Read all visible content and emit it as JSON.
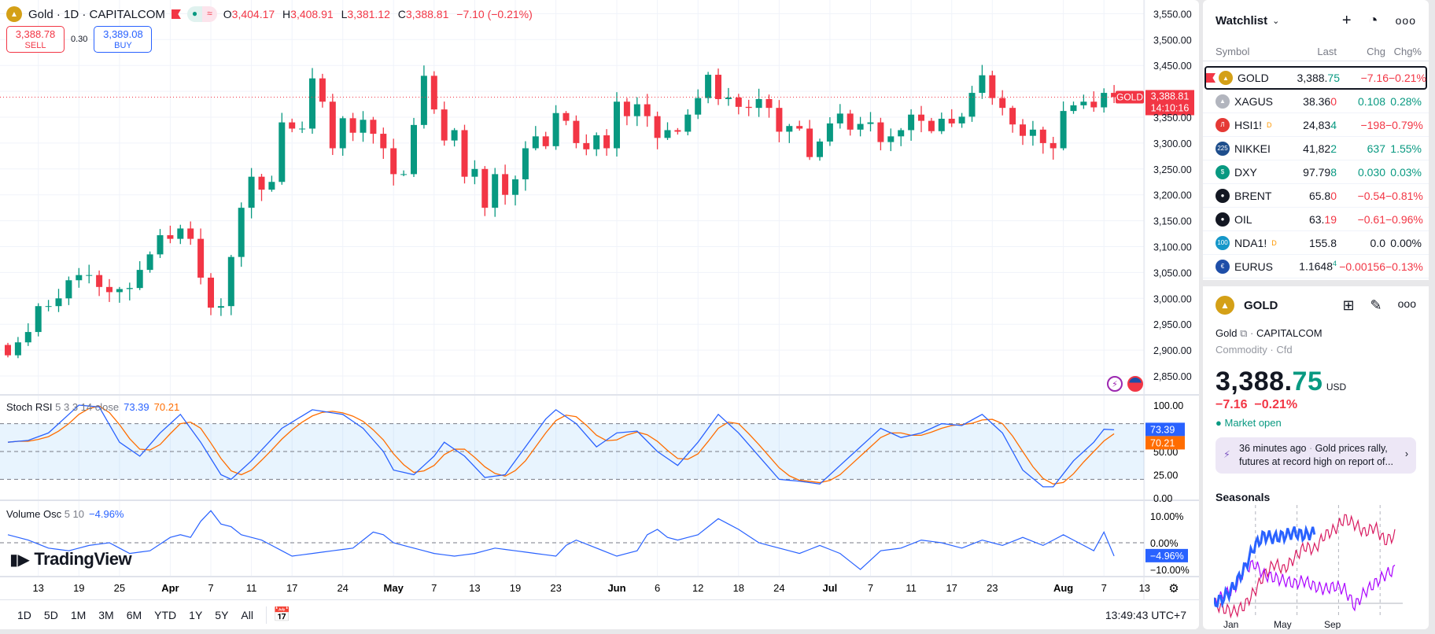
{
  "header": {
    "symbol_title": "Gold · 1D · CAPITALCOM",
    "o_label": "O",
    "o": "3,404.17",
    "h_label": "H",
    "h": "3,408.91",
    "l_label": "L",
    "l": "3,381.12",
    "c_label": "C",
    "c": "3,388.81",
    "change": "−7.10 (−0.21%)"
  },
  "trade": {
    "sell_price": "3,388.78",
    "sell_label": "SELL",
    "spread": "0.30",
    "buy_price": "3,389.08",
    "buy_label": "BUY"
  },
  "price_axis": {
    "ticks": [
      "3,550.00",
      "3,500.00",
      "3,450.00",
      "3,400.00",
      "3,350.00",
      "3,300.00",
      "3,250.00",
      "3,200.00",
      "3,150.00",
      "3,100.00",
      "3,050.00",
      "3,000.00",
      "2,950.00",
      "2,900.00",
      "2,850.00"
    ],
    "tick_values": [
      3550,
      3500,
      3450,
      3400,
      3350,
      3300,
      3250,
      3200,
      3150,
      3100,
      3050,
      3000,
      2950,
      2900,
      2850
    ],
    "last_label": "GOLD",
    "last_price": "3,388.81",
    "countdown": "14:10:16",
    "last_value": 3388.81
  },
  "chart_data": {
    "type": "candlestick",
    "first_open": 2910,
    "closes": [
      2890,
      2915,
      2935,
      2985,
      2985,
      3000,
      3035,
      3045,
      3045,
      3022,
      3012,
      3018,
      3020,
      3055,
      3085,
      3122,
      3115,
      3135,
      3115,
      3040,
      2982,
      2985,
      3080,
      3175,
      3235,
      3210,
      3225,
      3340,
      3328,
      3328,
      3425,
      3380,
      3290,
      3348,
      3320,
      3345,
      3318,
      3290,
      3240,
      3240,
      3335,
      3430,
      3365,
      3305,
      3325,
      3235,
      3250,
      3175,
      3240,
      3200,
      3230,
      3290,
      3313,
      3294,
      3358,
      3343,
      3300,
      3288,
      3315,
      3290,
      3380,
      3352,
      3375,
      3352,
      3310,
      3325,
      3322,
      3355,
      3387,
      3432,
      3385,
      3388,
      3370,
      3368,
      3385,
      3368,
      3322,
      3333,
      3328,
      3273,
      3303,
      3338,
      3357,
      3326,
      3337,
      3340,
      3302,
      3313,
      3325,
      3355,
      3343,
      3323,
      3347,
      3338,
      3351,
      3397,
      3431,
      3387,
      3368,
      3336,
      3314,
      3326,
      3300,
      3290,
      3362,
      3373,
      3380,
      3369,
      3397,
      3388.81
    ],
    "colors": {
      "up": "#089981",
      "down": "#f23645"
    }
  },
  "time_axis": [
    {
      "l": "13",
      "i": 3
    },
    {
      "l": "19",
      "i": 7
    },
    {
      "l": "25",
      "i": 11
    },
    {
      "l": "Apr",
      "i": 16,
      "m": true
    },
    {
      "l": "7",
      "i": 20
    },
    {
      "l": "11",
      "i": 24
    },
    {
      "l": "17",
      "i": 28
    },
    {
      "l": "24",
      "i": 33
    },
    {
      "l": "May",
      "i": 38,
      "m": true
    },
    {
      "l": "7",
      "i": 42
    },
    {
      "l": "13",
      "i": 46
    },
    {
      "l": "19",
      "i": 50
    },
    {
      "l": "23",
      "i": 54
    },
    {
      "l": "Jun",
      "i": 60,
      "m": true
    },
    {
      "l": "6",
      "i": 64
    },
    {
      "l": "12",
      "i": 68
    },
    {
      "l": "18",
      "i": 72
    },
    {
      "l": "24",
      "i": 76
    },
    {
      "l": "Jul",
      "i": 81,
      "m": true
    },
    {
      "l": "7",
      "i": 85
    },
    {
      "l": "11",
      "i": 89
    },
    {
      "l": "17",
      "i": 93
    },
    {
      "l": "23",
      "i": 97
    },
    {
      "l": "Aug",
      "i": 104,
      "m": true
    },
    {
      "l": "7",
      "i": 108
    },
    {
      "l": "13",
      "i": 112
    }
  ],
  "stoch": {
    "name": "Stoch RSI",
    "params": "5 3 3 14 close",
    "k": "73.39",
    "d": "70.21",
    "ticks": [
      "100.00",
      "50.00",
      "25.00",
      "0.00"
    ],
    "tick_values": [
      100,
      50,
      25,
      0
    ],
    "k_keypoints": [
      [
        0,
        60
      ],
      [
        2,
        62
      ],
      [
        4,
        70
      ],
      [
        7,
        100
      ],
      [
        9,
        98
      ],
      [
        11,
        60
      ],
      [
        13,
        45
      ],
      [
        15,
        70
      ],
      [
        17,
        90
      ],
      [
        19,
        60
      ],
      [
        21,
        25
      ],
      [
        22,
        20
      ],
      [
        24,
        40
      ],
      [
        27,
        75
      ],
      [
        30,
        95
      ],
      [
        33,
        90
      ],
      [
        35,
        75
      ],
      [
        37,
        50
      ],
      [
        38,
        30
      ],
      [
        40,
        25
      ],
      [
        42,
        45
      ],
      [
        43,
        60
      ],
      [
        45,
        45
      ],
      [
        47,
        22
      ],
      [
        49,
        25
      ],
      [
        51,
        55
      ],
      [
        53,
        85
      ],
      [
        54,
        95
      ],
      [
        56,
        80
      ],
      [
        58,
        55
      ],
      [
        60,
        70
      ],
      [
        62,
        72
      ],
      [
        64,
        50
      ],
      [
        66,
        35
      ],
      [
        68,
        60
      ],
      [
        70,
        90
      ],
      [
        72,
        70
      ],
      [
        74,
        45
      ],
      [
        76,
        20
      ],
      [
        78,
        18
      ],
      [
        80,
        15
      ],
      [
        82,
        35
      ],
      [
        84,
        55
      ],
      [
        86,
        75
      ],
      [
        88,
        65
      ],
      [
        90,
        70
      ],
      [
        92,
        80
      ],
      [
        94,
        78
      ],
      [
        96,
        90
      ],
      [
        98,
        70
      ],
      [
        100,
        30
      ],
      [
        102,
        12
      ],
      [
        103,
        12
      ],
      [
        105,
        40
      ],
      [
        107,
        60
      ],
      [
        108,
        74
      ],
      [
        109,
        73.39
      ]
    ]
  },
  "volosc": {
    "name": "Volume Osc",
    "params": "5 10",
    "value": "−4.96%",
    "ticks": [
      "10.00%",
      "0.00%",
      "−10.00%"
    ],
    "tick_values": [
      10,
      0,
      -10
    ],
    "keypoints": [
      [
        0,
        3
      ],
      [
        2,
        1
      ],
      [
        4,
        -2
      ],
      [
        6,
        -3
      ],
      [
        8,
        -1
      ],
      [
        10,
        0
      ],
      [
        12,
        -4
      ],
      [
        14,
        -3
      ],
      [
        16,
        2
      ],
      [
        17,
        3
      ],
      [
        18,
        2
      ],
      [
        19,
        8
      ],
      [
        20,
        12
      ],
      [
        21,
        7
      ],
      [
        22,
        6
      ],
      [
        23,
        3
      ],
      [
        25,
        1
      ],
      [
        27,
        -3
      ],
      [
        28,
        -5
      ],
      [
        30,
        -4
      ],
      [
        32,
        -3
      ],
      [
        34,
        -2
      ],
      [
        36,
        4
      ],
      [
        37,
        3
      ],
      [
        38,
        0
      ],
      [
        40,
        -2
      ],
      [
        42,
        -4
      ],
      [
        44,
        -5
      ],
      [
        46,
        -4
      ],
      [
        48,
        -2
      ],
      [
        50,
        -3
      ],
      [
        52,
        -4
      ],
      [
        54,
        -5
      ],
      [
        55,
        -1
      ],
      [
        56,
        1
      ],
      [
        58,
        -2
      ],
      [
        60,
        -5
      ],
      [
        62,
        -3
      ],
      [
        63,
        3
      ],
      [
        64,
        5
      ],
      [
        65,
        2
      ],
      [
        66,
        1
      ],
      [
        68,
        3
      ],
      [
        70,
        9
      ],
      [
        72,
        5
      ],
      [
        74,
        0
      ],
      [
        76,
        -2
      ],
      [
        78,
        -4
      ],
      [
        80,
        -1
      ],
      [
        82,
        -4
      ],
      [
        84,
        -10
      ],
      [
        86,
        -3
      ],
      [
        88,
        -2
      ],
      [
        90,
        1
      ],
      [
        92,
        0
      ],
      [
        94,
        -2
      ],
      [
        96,
        1
      ],
      [
        98,
        -1
      ],
      [
        100,
        2
      ],
      [
        102,
        -1
      ],
      [
        104,
        3
      ],
      [
        106,
        -1
      ],
      [
        107,
        -3
      ],
      [
        108,
        4
      ],
      [
        109,
        -4.96
      ]
    ]
  },
  "logo": "TradingView",
  "toolbar": {
    "ranges": [
      "1D",
      "5D",
      "1M",
      "3M",
      "6M",
      "YTD",
      "1Y",
      "5Y",
      "All"
    ],
    "clock": "13:49:43 UTC+7"
  },
  "watchlist": {
    "title": "Watchlist",
    "cols": [
      "Symbol",
      "Last",
      "Chg",
      "Chg%"
    ],
    "rows": [
      {
        "sym": "GOLD",
        "last_a": "3,388.",
        "last_b": "75",
        "last_dir": "up",
        "chg": "−7.16",
        "pct": "−0.21%",
        "dir": "dn",
        "icon_color": "#d4a017",
        "icon": "▲"
      },
      {
        "sym": "XAGUS",
        "last_a": "38.36",
        "last_b": "0",
        "last_dir": "dn",
        "chg": "0.108",
        "pct": "0.28%",
        "dir": "up",
        "icon_color": "#b2b5be",
        "icon": "▲"
      },
      {
        "sym": "HSI1!",
        "sup": "D",
        "last_a": "24,83",
        "last_b": "4",
        "last_dir": "up",
        "chg": "−198",
        "pct": "−0.79%",
        "dir": "dn",
        "icon_color": "#e53935",
        "icon": "Л"
      },
      {
        "sym": "NIKKEI",
        "last_a": "41,82",
        "last_b": "2",
        "last_dir": "up",
        "chg": "637",
        "pct": "1.55%",
        "dir": "up",
        "icon_color": "#1e4e8c",
        "icon": "225"
      },
      {
        "sym": "DXY",
        "last_a": "97.79",
        "last_b": "8",
        "last_dir": "up",
        "chg": "0.030",
        "pct": "0.03%",
        "dir": "up",
        "icon_color": "#089981",
        "icon": "$"
      },
      {
        "sym": "BRENT",
        "last_a": "65.8",
        "last_b": "0",
        "last_dir": "dn",
        "chg": "−0.54",
        "pct": "−0.81%",
        "dir": "dn",
        "icon_color": "#131722",
        "icon": "●"
      },
      {
        "sym": "OIL",
        "last_a": "63.",
        "last_b": "19",
        "last_dir": "dn",
        "chg": "−0.61",
        "pct": "−0.96%",
        "dir": "dn",
        "icon_color": "#131722",
        "icon": "●"
      },
      {
        "sym": "NDA1!",
        "sup": "D",
        "last_a": "155.8",
        "last_b": "",
        "last_dir": "",
        "chg": "0.0",
        "pct": "0.00%",
        "dir": "",
        "icon_color": "#1597c9",
        "icon": "100"
      },
      {
        "sym": "EURUS",
        "last_a": "1.1648",
        "last_b": "4",
        "last_dir": "up",
        "last_sup": true,
        "chg": "−0.00156",
        "pct": "−0.13%",
        "dir": "dn",
        "icon_color": "#1e4ea8",
        "icon": "€"
      }
    ]
  },
  "detail": {
    "symbol": "GOLD",
    "name": "Gold",
    "exchange": "CAPITALCOM",
    "type": "Commodity",
    "subtype": "Cfd",
    "price_a": "3,388.",
    "price_b": "75",
    "currency": "USD",
    "chg": "−7.16",
    "pct": "−0.21%",
    "status": "Market open",
    "news_time": "36 minutes ago",
    "news_text": "Gold prices rally, futures at record high on report of...",
    "seasonals_title": "Seasonals",
    "seasonal_x": [
      "Jan",
      "May",
      "Sep"
    ],
    "seasonals": [
      {
        "color": "#d81b60",
        "points": [
          0,
          -2,
          -3,
          -1,
          4,
          10,
          14,
          12,
          16,
          20,
          19,
          24,
          26,
          30,
          28,
          25,
          27,
          22,
          24
        ]
      },
      {
        "color": "#aa00ff",
        "points": [
          0,
          3,
          5,
          12,
          14,
          10,
          9,
          8,
          7,
          8,
          6,
          5,
          6,
          5,
          -1,
          4,
          7,
          10,
          12
        ]
      },
      {
        "color": "#2962ff",
        "points": [
          0,
          2,
          6,
          12,
          20,
          24,
          23,
          24,
          25,
          24,
          25
        ]
      }
    ]
  }
}
